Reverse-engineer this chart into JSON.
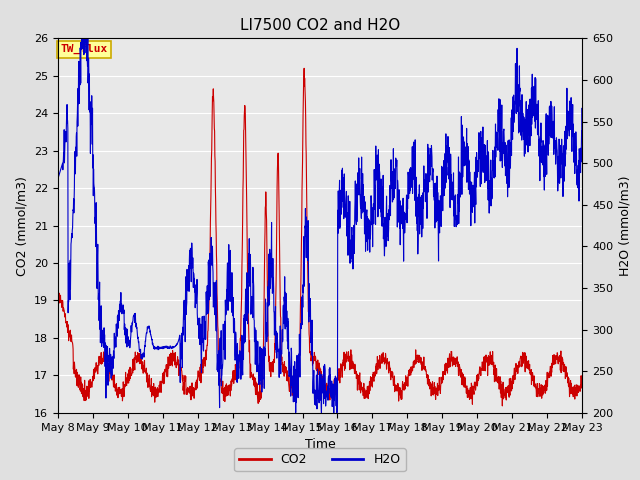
{
  "title": "LI7500 CO2 and H2O",
  "xlabel": "Time",
  "ylabel_left": "CO2 (mmol/m3)",
  "ylabel_right": "H2O (mmol/m3)",
  "co2_ylim": [
    16.0,
    26.0
  ],
  "h2o_ylim": [
    200,
    650
  ],
  "co2_color": "#cc0000",
  "h2o_color": "#0000cc",
  "fig_bg_color": "#e0e0e0",
  "plot_bg_color": "#e8e8e8",
  "grid_color": "#ffffff",
  "annotation_text": "TW_flux",
  "annotation_bg": "#ffff99",
  "annotation_edge": "#ccaa00",
  "legend_co2": "CO2",
  "legend_h2o": "H2O",
  "tick_labels": [
    "May 8",
    "May 9",
    "May 10",
    "May 11",
    "May 12",
    "May 13",
    "May 14",
    "May 15",
    "May 16",
    "May 17",
    "May 18",
    "May 19",
    "May 20",
    "May 21",
    "May 22",
    "May 23"
  ],
  "n_points": 2000,
  "title_fontsize": 11,
  "label_fontsize": 9,
  "tick_fontsize": 8
}
